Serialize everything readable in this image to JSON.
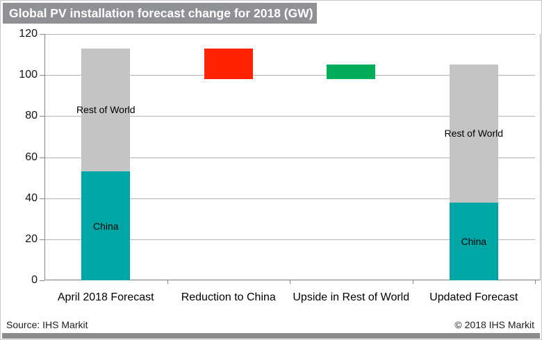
{
  "title": "Global PV installation forecast change for 2018 (GW)",
  "footer": {
    "source": "Source: IHS Markit",
    "copyright": "© 2018 IHS Markit"
  },
  "colors": {
    "china": "#00a5a5",
    "rest_of_world": "#c4c4c4",
    "reduction": "#ff2200",
    "upside": "#00ad5b",
    "title_bar": "#8f9195",
    "bottom_strip": "#8c8c8c",
    "gridline": "#b3b3b3",
    "axis": "#7f7f7f"
  },
  "chart_data": {
    "type": "bar",
    "subtype": "stacked-waterfall",
    "title": "Global PV installation forecast change for 2018 (GW)",
    "ylabel": "GW",
    "ylim": [
      0,
      120
    ],
    "yticks": [
      0,
      20,
      40,
      60,
      80,
      100,
      120
    ],
    "grid": true,
    "legend_position": "none (segments labeled inside bars)",
    "categories": [
      "April 2018 Forecast",
      "Reduction to China",
      "Upside in Rest of World",
      "Updated Forecast"
    ],
    "bars": [
      {
        "category": "April 2018 Forecast",
        "total": 113,
        "segments": [
          {
            "name": "China",
            "from": 0,
            "to": 53,
            "value": 53,
            "color_key": "china",
            "label_in_bar": "China"
          },
          {
            "name": "Rest of World",
            "from": 53,
            "to": 113,
            "value": 60,
            "color_key": "rest_of_world",
            "label_in_bar": "Rest of World"
          }
        ]
      },
      {
        "category": "Reduction to China",
        "total": 98,
        "segments": [
          {
            "name": "Reduction to China",
            "from": 98,
            "to": 113,
            "value": -15,
            "color_key": "reduction",
            "label_in_bar": ""
          }
        ]
      },
      {
        "category": "Upside in Rest of World",
        "total": 105,
        "segments": [
          {
            "name": "Upside in Rest of World",
            "from": 98,
            "to": 105,
            "value": 7,
            "color_key": "upside",
            "label_in_bar": ""
          }
        ]
      },
      {
        "category": "Updated Forecast",
        "total": 105,
        "segments": [
          {
            "name": "China",
            "from": 0,
            "to": 38,
            "value": 38,
            "color_key": "china",
            "label_in_bar": "China"
          },
          {
            "name": "Rest of World",
            "from": 38,
            "to": 105,
            "value": 67,
            "color_key": "rest_of_world",
            "label_in_bar": "Rest of World"
          }
        ]
      }
    ]
  }
}
